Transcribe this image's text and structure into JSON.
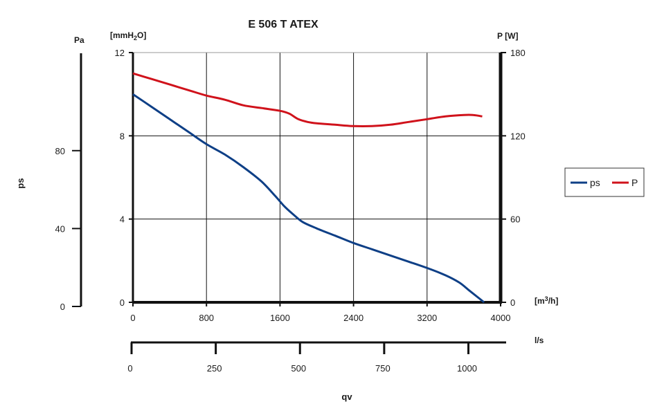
{
  "chart_data": {
    "type": "line",
    "title": "E 506 T ATEX",
    "xlabel": "qv",
    "ylabel": "ps",
    "grid": true,
    "legend_position": "right",
    "x_axis": {
      "unit": "m³/h",
      "unit_label": "[m³/h]",
      "range": [
        0,
        4000
      ],
      "ticks": [
        0,
        800,
        1600,
        2400,
        3200,
        4000
      ]
    },
    "x_axis_ls": {
      "unit_label": "l/s",
      "ticks": [
        0,
        250,
        500,
        750,
        1000
      ]
    },
    "y_axis_mm": {
      "unit_label": "[mmH2O]",
      "range": [
        0,
        12
      ],
      "ticks": [
        0,
        4,
        8,
        12
      ]
    },
    "y_axis_pa": {
      "unit_label": "Pa",
      "ticks": [
        0,
        40,
        80
      ]
    },
    "y_axis_w": {
      "unit_label": "P [W]",
      "range": [
        0,
        180
      ],
      "ticks": [
        0,
        60,
        120,
        180
      ]
    },
    "series": [
      {
        "name": "ps",
        "color": "#0e3f86",
        "y_unit": "mmH2O",
        "x": [
          0,
          200,
          400,
          600,
          800,
          1000,
          1200,
          1400,
          1550,
          1650,
          1750,
          1850,
          2000,
          2200,
          2400,
          2600,
          2800,
          3000,
          3200,
          3400,
          3550,
          3650,
          3750,
          3820
        ],
        "values": [
          10.0,
          9.4,
          8.8,
          8.2,
          7.6,
          7.1,
          6.5,
          5.8,
          5.1,
          4.6,
          4.2,
          3.85,
          3.55,
          3.2,
          2.85,
          2.55,
          2.25,
          1.95,
          1.65,
          1.3,
          0.95,
          0.6,
          0.25,
          0.0
        ]
      },
      {
        "name": "P",
        "color": "#d0121b",
        "y_unit": "W",
        "x": [
          0,
          200,
          400,
          600,
          800,
          1000,
          1200,
          1400,
          1600,
          1700,
          1800,
          1900,
          2000,
          2200,
          2400,
          2600,
          2800,
          3000,
          3200,
          3400,
          3600,
          3700,
          3800
        ],
        "values": [
          165,
          161,
          157,
          153,
          149,
          146,
          142,
          140,
          138,
          136,
          132,
          130,
          129,
          128,
          127,
          127,
          128,
          130,
          132,
          134,
          135,
          135,
          134
        ]
      }
    ]
  }
}
